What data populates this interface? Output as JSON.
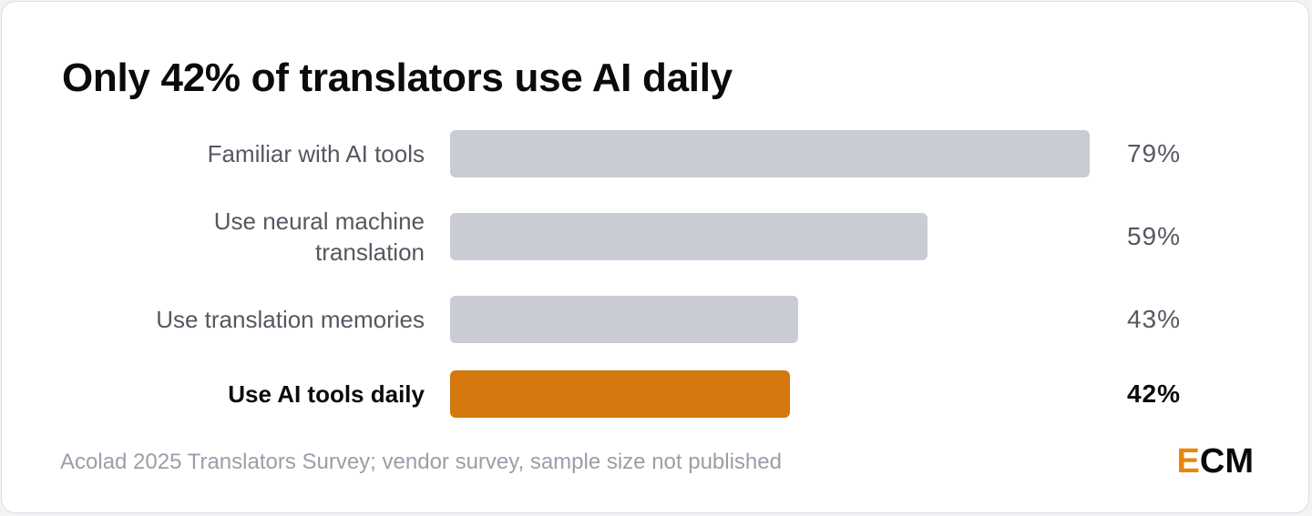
{
  "title": "Only 42% of translators use AI daily",
  "source": "Acolad 2025 Translators Survey; vendor survey, sample size not published",
  "logo": {
    "first": "E",
    "rest": "CM"
  },
  "colors": {
    "bar_default": "#c9ccd4",
    "bar_highlight": "#d4770c",
    "logo_accent": "#e8870f",
    "text_muted": "#555861",
    "text_strong": "#0b0b0c"
  },
  "chart_data": {
    "type": "bar",
    "orientation": "horizontal",
    "title": "Only 42% of translators use AI daily",
    "categories": [
      "Familiar with AI tools",
      "Use neural machine translation",
      "Use translation memories",
      "Use AI tools daily"
    ],
    "category_lines": [
      [
        "Familiar with AI tools"
      ],
      [
        "Use neural machine",
        "translation"
      ],
      [
        "Use translation memories"
      ],
      [
        "Use AI tools daily"
      ]
    ],
    "values": [
      79,
      59,
      43,
      42
    ],
    "value_labels": [
      "79%",
      "59%",
      "43%",
      "42%"
    ],
    "highlight_index": 3,
    "xlim": [
      0,
      79
    ],
    "grid": false,
    "legend": "none"
  }
}
